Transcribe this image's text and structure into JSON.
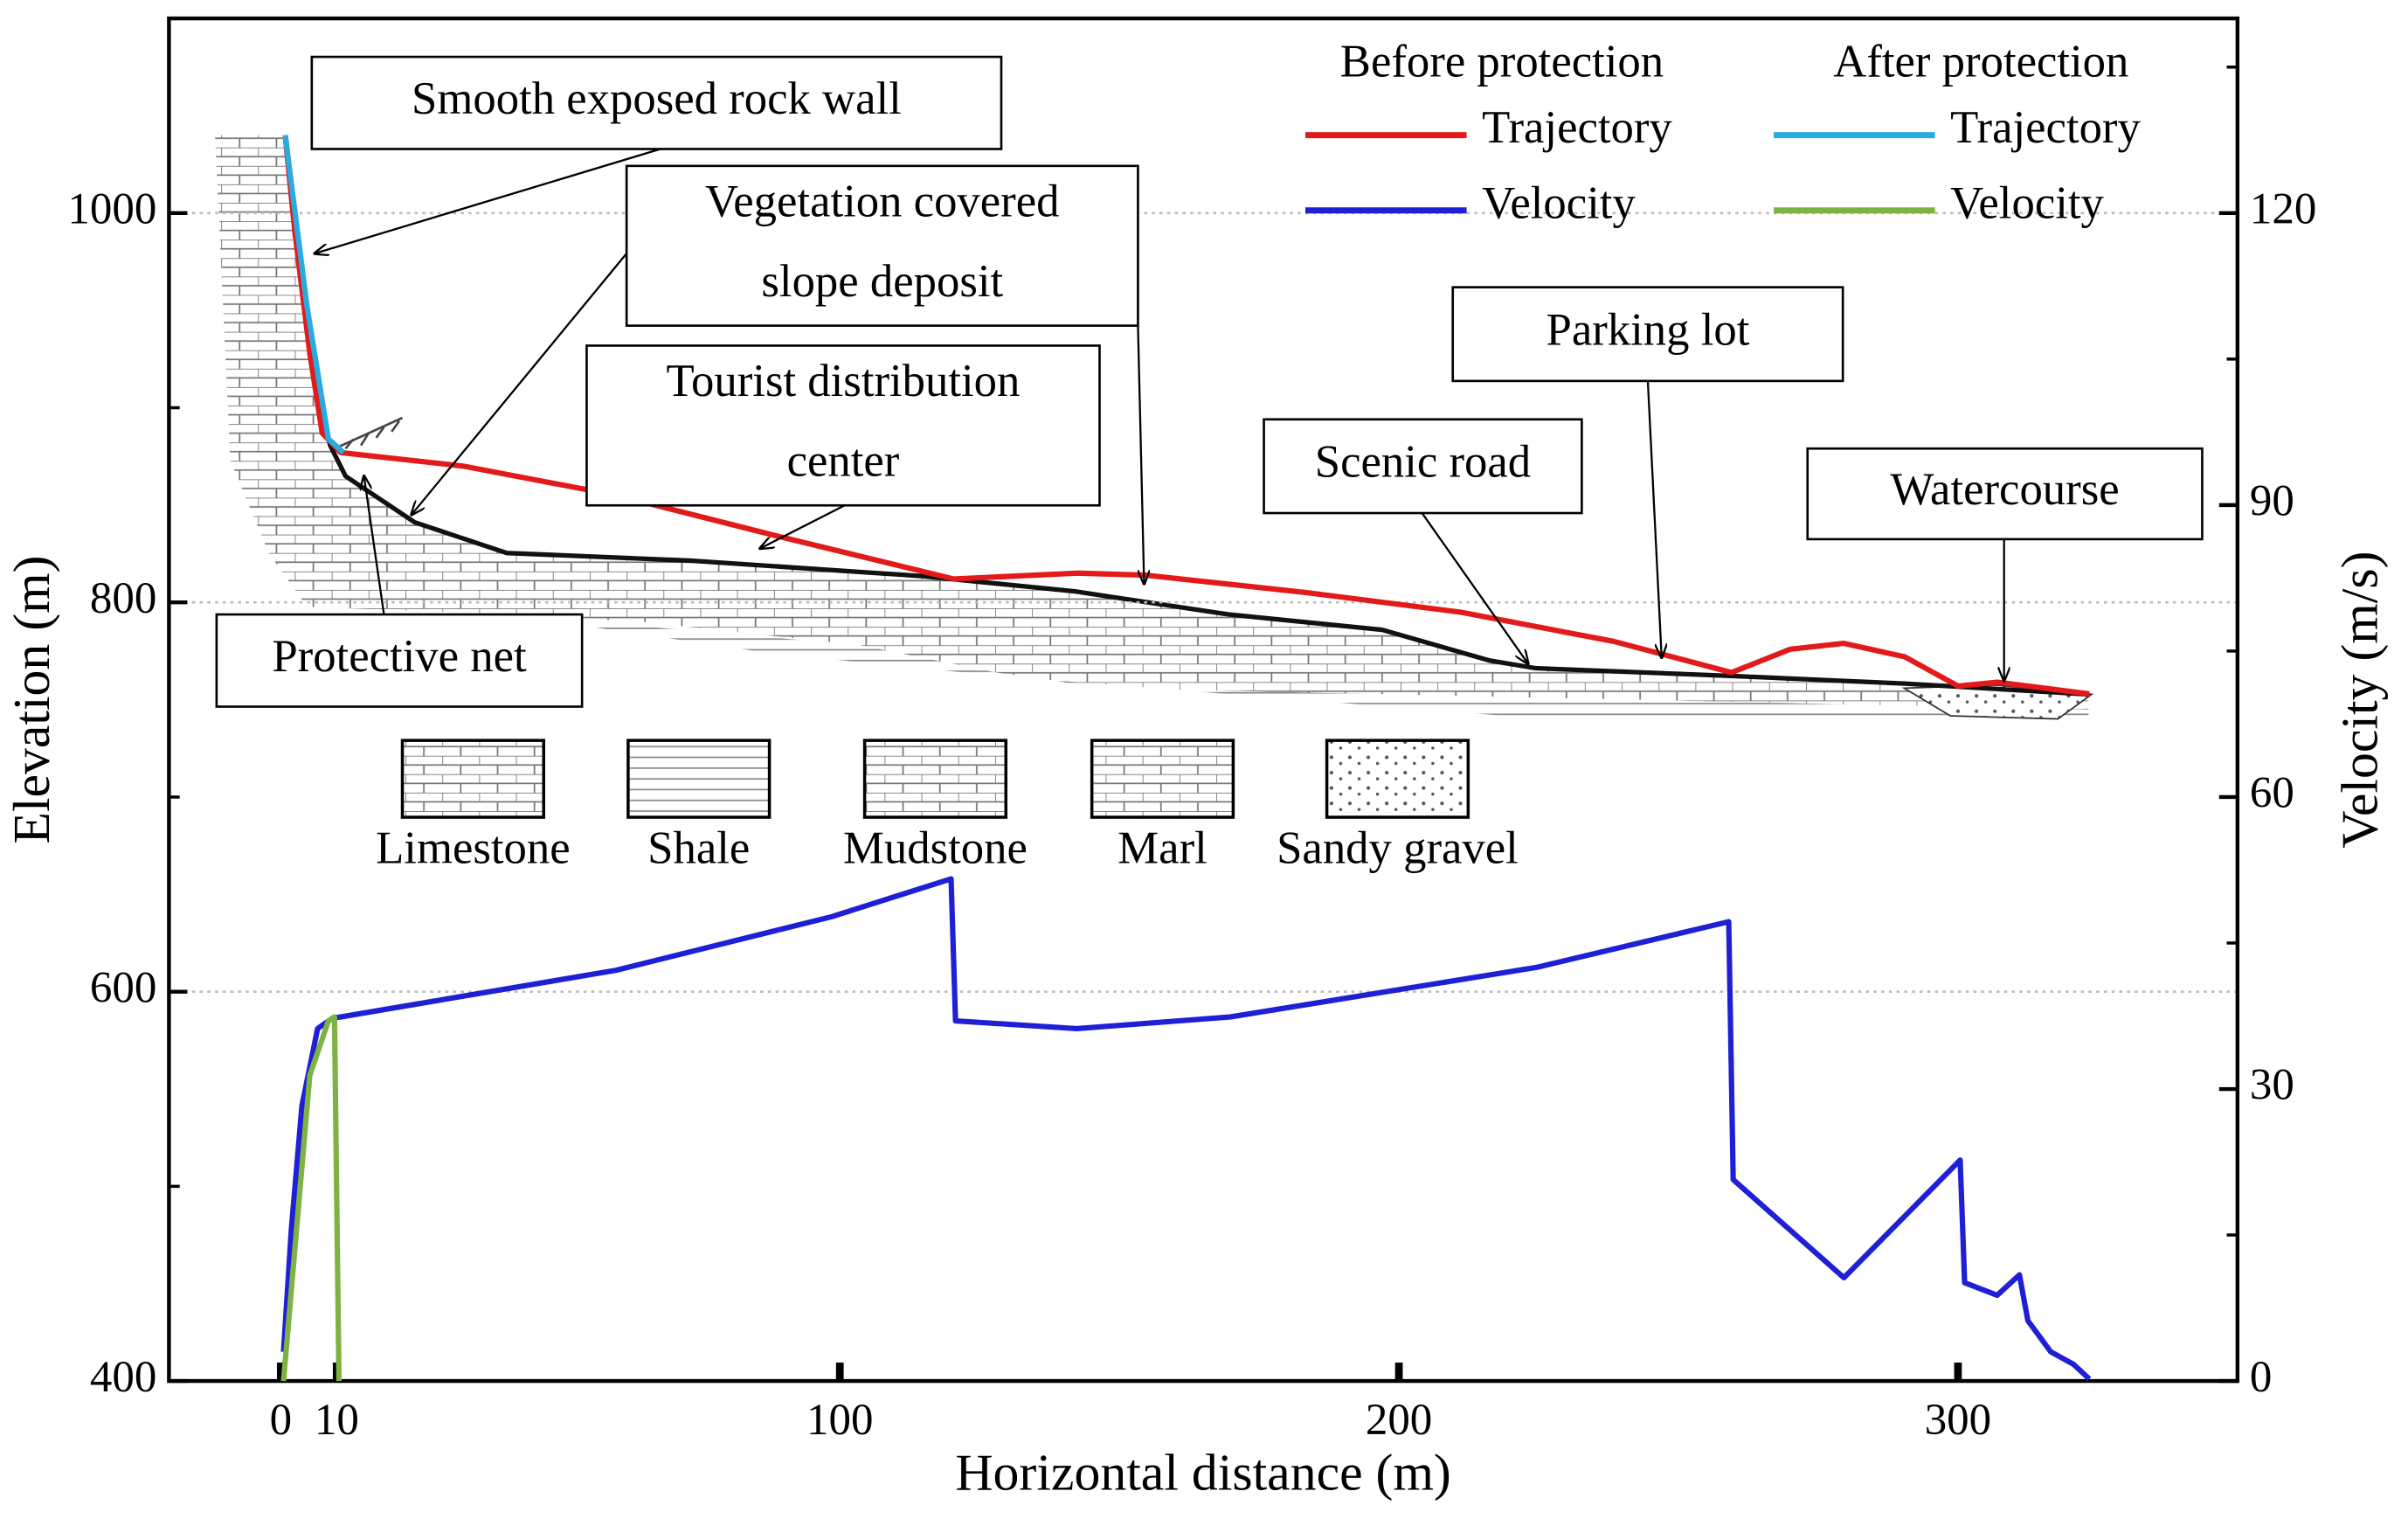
{
  "chart_data": {
    "type": "line",
    "xlabel": "Horizontal distance (m)",
    "ylabel": "Elevation (m)",
    "y2label": "Velocity (m/s)",
    "xlim": [
      -20,
      350
    ],
    "xticks": [
      0,
      10,
      100,
      200,
      300
    ],
    "ylim": [
      400,
      1100
    ],
    "yticks": [
      400,
      600,
      800,
      1000
    ],
    "yminorticks": [
      500,
      700,
      900,
      1100
    ],
    "y2lim": [
      0,
      140
    ],
    "y2ticks": [
      0,
      30,
      60,
      90,
      120
    ],
    "y2minorticks": [
      15,
      45,
      75,
      105,
      135
    ],
    "grid": true,
    "legend_groups": [
      "Before protection",
      "After protection"
    ],
    "series": [
      {
        "name": "Trajectory",
        "color": "#e31a1c",
        "axis": "y",
        "x": [
          0.8,
          2.5,
          5.2,
          7.4,
          10.7,
          32.6,
          60,
          87.5,
          120.4,
          142.4,
          154.7,
          183.5,
          211,
          238.4,
          259.5,
          270,
          279.6,
          290.5,
          300,
          307,
          312.5,
          323.5
        ],
        "values": [
          1040,
          991,
          928,
          887,
          877,
          870,
          855,
          835,
          812,
          815,
          814,
          805,
          795,
          780,
          764,
          776,
          779,
          772,
          757,
          759,
          757,
          753
        ]
      },
      {
        "name": "Velocity",
        "color": "#1f1fd6",
        "axis": "y2",
        "x": [
          0.5,
          1.9,
          3.8,
          6.6,
          9.3,
          10.7,
          60,
          98.5,
          119.9,
          120.7,
          142.4,
          169.8,
          224.7,
          259,
          259.8,
          279.6,
          300.4,
          301.2,
          307,
          311,
          312.5,
          316.6,
          320.7,
          323.5
        ],
        "values": [
          3,
          15.6,
          28.3,
          36.2,
          37.3,
          37.4,
          42.2,
          47.7,
          51.6,
          37,
          36.2,
          37.4,
          42.5,
          47.2,
          20.7,
          10.6,
          22.7,
          10.1,
          8.8,
          10.9,
          6.2,
          3,
          1.7,
          0.2
        ]
      },
      {
        "name": "Trajectory",
        "color": "#29abe2",
        "axis": "y",
        "x": [
          0.8,
          4.7,
          8.5,
          11.2
        ],
        "values": [
          1040,
          952,
          884,
          877
        ]
      },
      {
        "name": "Velocity",
        "color": "#7cb342",
        "axis": "y2",
        "x": [
          0.5,
          5.2,
          8.5,
          9.6,
          10.4
        ],
        "values": [
          0,
          31.4,
          37,
          37.4,
          0
        ]
      }
    ],
    "annotations": [
      {
        "lines": [
          "Smooth exposed rock wall"
        ]
      },
      {
        "lines": [
          "Vegetation covered",
          "slope deposit"
        ]
      },
      {
        "lines": [
          "Tourist distribution",
          "center"
        ]
      },
      {
        "lines": [
          "Parking lot"
        ]
      },
      {
        "lines": [
          "Scenic road"
        ]
      },
      {
        "lines": [
          "Watercourse"
        ]
      },
      {
        "lines": [
          "Protective net"
        ]
      }
    ],
    "lithology": [
      "Limestone",
      "Shale",
      "Mudstone",
      "Marl",
      "Sandy gravel"
    ]
  }
}
